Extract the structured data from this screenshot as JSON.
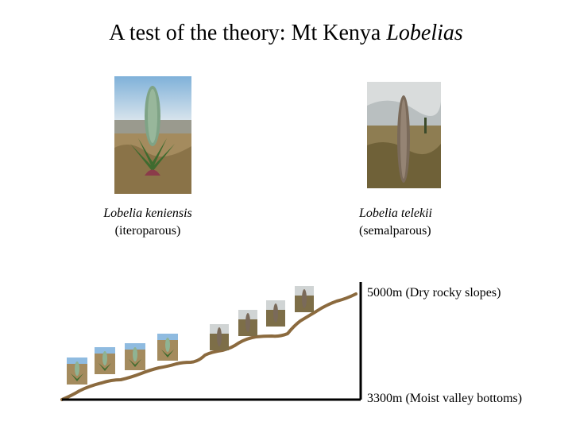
{
  "slide": {
    "title_main": "A test of the theory: Mt Kenya ",
    "title_italic": "Lobelias"
  },
  "species": [
    {
      "name": "Lobelia keniensis",
      "type": "(iteroparous)"
    },
    {
      "name": "Lobelia telekii",
      "type": "(semalparous)"
    }
  ],
  "altitude": {
    "top_label": "5000m (Dry rocky slopes)",
    "bottom_label": "3300m (Moist valley bottoms)"
  },
  "colors": {
    "slope_line": "#8b6a3e",
    "axis": "#000000"
  }
}
